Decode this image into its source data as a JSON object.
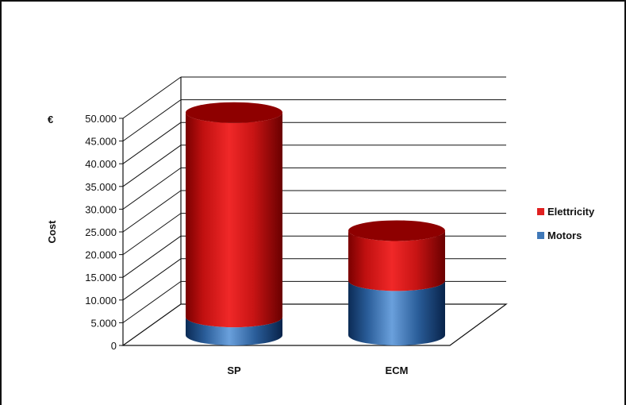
{
  "chart_data": {
    "type": "bar",
    "style": "3d-cylinder-stacked",
    "title": "",
    "xlabel": "",
    "ylabel": "Cost",
    "unit": "€",
    "categories": [
      "SP",
      "ECM"
    ],
    "series": [
      {
        "name": "Motors",
        "color": "#3f78b8",
        "values": [
          4000,
          12000
        ]
      },
      {
        "name": "Elettricity",
        "color": "#e02020",
        "values": [
          45000,
          11000
        ]
      }
    ],
    "ylim": [
      0,
      50000
    ],
    "yticks": [
      "0",
      "5.000",
      "10.000",
      "15.000",
      "20.000",
      "25.000",
      "30.000",
      "35.000",
      "40.000",
      "45.000",
      "50.000"
    ],
    "legend": [
      "Elettricity",
      "Motors"
    ],
    "legend_position": "right",
    "grid": true
  }
}
